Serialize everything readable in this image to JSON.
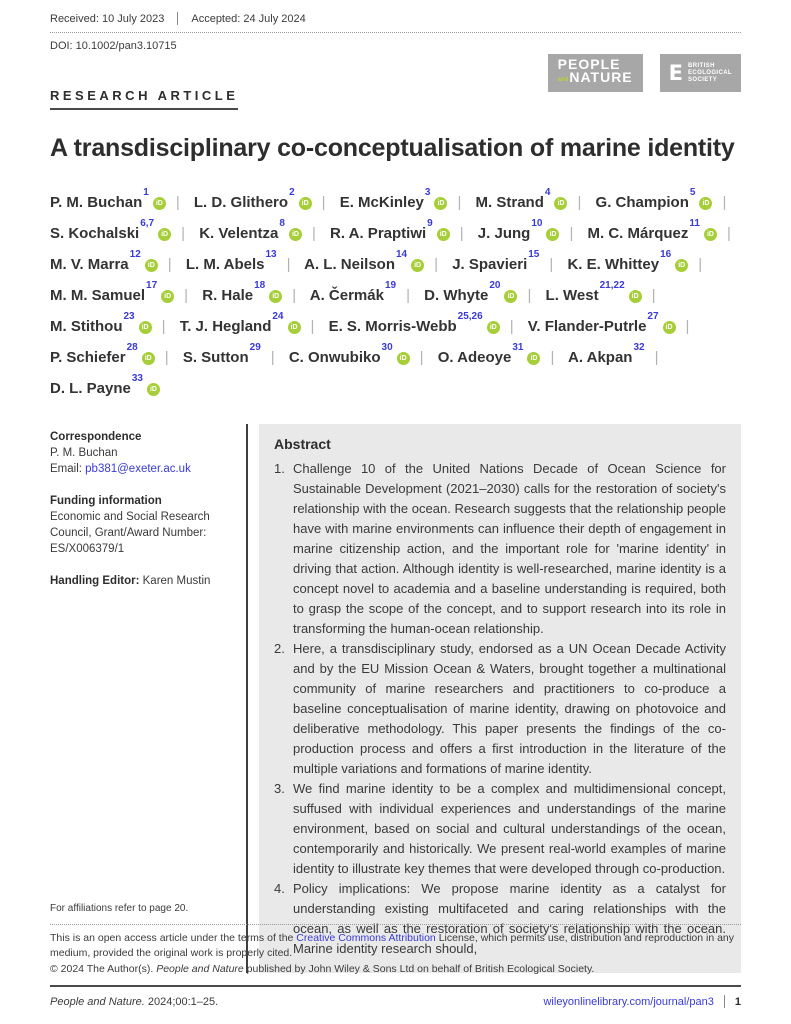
{
  "header": {
    "received_label": "Received: 10 July 2023",
    "accepted_label": "Accepted: 24 July 2024",
    "doi": "DOI: 10.1002/pan3.10715",
    "article_type": "RESEARCH ARTICLE"
  },
  "logos": {
    "journal": {
      "line1": "PEOPLE",
      "and_text": "and",
      "line2": "NATURE"
    },
    "society": {
      "e_letter": "E",
      "lines": [
        "BRITISH",
        "ECOLOGICAL",
        "SOCIETY"
      ]
    }
  },
  "title": "A transdisciplinary co-conceptualisation of marine identity",
  "orcid_icon_label": "iD",
  "authors": [
    {
      "name": "P. M. Buchan",
      "sup": "1",
      "orcid": true
    },
    {
      "name": "L. D. Glithero",
      "sup": "2",
      "orcid": true
    },
    {
      "name": "E. McKinley",
      "sup": "3",
      "orcid": true
    },
    {
      "name": "M. Strand",
      "sup": "4",
      "orcid": true
    },
    {
      "name": "G. Champion",
      "sup": "5",
      "orcid": true
    },
    {
      "name": "S. Kochalski",
      "sup": "6,7",
      "orcid": true
    },
    {
      "name": "K. Velentza",
      "sup": "8",
      "orcid": true
    },
    {
      "name": "R. A. Praptiwi",
      "sup": "9",
      "orcid": true
    },
    {
      "name": "J. Jung",
      "sup": "10",
      "orcid": true
    },
    {
      "name": "M. C. Márquez",
      "sup": "11",
      "orcid": true
    },
    {
      "name": "M. V. Marra",
      "sup": "12",
      "orcid": true
    },
    {
      "name": "L. M. Abels",
      "sup": "13",
      "orcid": false
    },
    {
      "name": "A. L. Neilson",
      "sup": "14",
      "orcid": true
    },
    {
      "name": "J. Spavieri",
      "sup": "15",
      "orcid": false
    },
    {
      "name": "K. E. Whittey",
      "sup": "16",
      "orcid": true
    },
    {
      "name": "M. M. Samuel",
      "sup": "17",
      "orcid": true
    },
    {
      "name": "R. Hale",
      "sup": "18",
      "orcid": true
    },
    {
      "name": "A. Čermák",
      "sup": "19",
      "orcid": false
    },
    {
      "name": "D. Whyte",
      "sup": "20",
      "orcid": true
    },
    {
      "name": "L. West",
      "sup": "21,22",
      "orcid": true
    },
    {
      "name": "M. Stithou",
      "sup": "23",
      "orcid": true
    },
    {
      "name": "T. J. Hegland",
      "sup": "24",
      "orcid": true
    },
    {
      "name": "E. S. Morris-Webb",
      "sup": "25,26",
      "orcid": true
    },
    {
      "name": "V. Flander-Putrle",
      "sup": "27",
      "orcid": true
    },
    {
      "name": "P. Schiefer",
      "sup": "28",
      "orcid": true
    },
    {
      "name": "S. Sutton",
      "sup": "29",
      "orcid": false
    },
    {
      "name": "C. Onwubiko",
      "sup": "30",
      "orcid": true
    },
    {
      "name": "O. Adeoye",
      "sup": "31",
      "orcid": true
    },
    {
      "name": "A. Akpan",
      "sup": "32",
      "orcid": false
    },
    {
      "name": "D. L. Payne",
      "sup": "33",
      "orcid": true
    }
  ],
  "sidebar": {
    "correspondence_heading": "Correspondence",
    "correspondence_name": "P. M. Buchan",
    "email_label": "Email: ",
    "email": "pb381@exeter.ac.uk",
    "funding_heading": "Funding information",
    "funding_text": "Economic and Social Research Council, Grant/Award Number: ES/X006379/1",
    "handling_editor_label": "Handling Editor: ",
    "handling_editor": "Karen Mustin"
  },
  "abstract": {
    "heading": "Abstract",
    "items": [
      "Challenge 10 of the United Nations Decade of Ocean Science for Sustainable Development (2021–2030) calls for the restoration of society's relationship with the ocean. Research suggests that the relationship people have with marine environments can influence their depth of engagement in marine citizenship action, and the important role for 'marine identity' in driving that action. Although identity is well-researched, marine identity is a concept novel to academia and a baseline understanding is required, both to grasp the scope of the concept, and to support research into its role in transforming the human-ocean relationship.",
      "Here, a transdisciplinary study, endorsed as a UN Ocean Decade Activity and by the EU Mission Ocean & Waters, brought together a multinational community of marine researchers and practitioners to co-produce a baseline conceptualisation of marine identity, drawing on photovoice and deliberative methodology. This paper presents the findings of the co-production process and offers a first introduction in the literature of the multiple variations and formations of marine identity.",
      "We find marine identity to be a complex and multidimensional concept, suffused with individual experiences and understandings of the marine environment, based on social and cultural understandings of the ocean, contemporarily and historically. We present real-world examples of marine identity to illustrate key themes that were developed through co-production.",
      "Policy implications: We propose marine identity as a catalyst for understanding existing multifaceted and caring relationships with the ocean, as well as the restoration of society's relationship with the ocean. Marine identity research should,"
    ]
  },
  "footnotes": {
    "affiliations": "For affiliations refer to page 20.",
    "open_access_pre": "This is an open access article under the terms of the ",
    "open_access_link": "Creative Commons Attribution",
    "open_access_post": " License, which permits use, distribution and reproduction in any medium, provided the original work is properly cited.",
    "copyright_pre": "© 2024 The Author(s). ",
    "copyright_italic": "People and Nature",
    "copyright_post": " published by John Wiley & Sons Ltd on behalf of British Ecological Society."
  },
  "footer": {
    "citation_italic": "People and Nature.",
    "citation_rest": " 2024;00:1–25.",
    "website": "wileyonlinelibrary.com/journal/pan3",
    "page_number": "1"
  },
  "colors": {
    "accent_blue": "#3a3ad6",
    "orcid_green": "#a6ce39",
    "logo_gray": "#a7a7a7",
    "abstract_bg": "#e9e9e9"
  }
}
